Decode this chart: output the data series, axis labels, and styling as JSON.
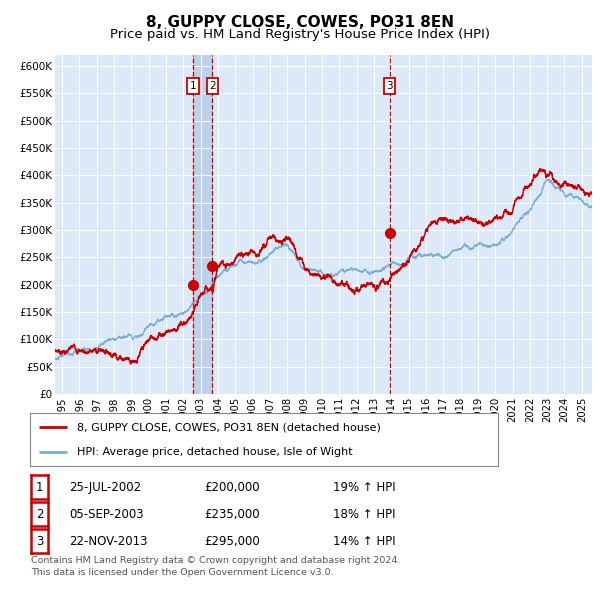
{
  "title": "8, GUPPY CLOSE, COWES, PO31 8EN",
  "subtitle": "Price paid vs. HM Land Registry's House Price Index (HPI)",
  "title_fontsize": 11,
  "subtitle_fontsize": 9.5,
  "ylim": [
    0,
    620000
  ],
  "yticks": [
    0,
    50000,
    100000,
    150000,
    200000,
    250000,
    300000,
    350000,
    400000,
    450000,
    500000,
    550000,
    600000
  ],
  "ytick_labels": [
    "£0",
    "£50K",
    "£100K",
    "£150K",
    "£200K",
    "£250K",
    "£300K",
    "£350K",
    "£400K",
    "£450K",
    "£500K",
    "£550K",
    "£600K"
  ],
  "xlim_start": 1994.6,
  "xlim_end": 2025.6,
  "xticks": [
    1995,
    1996,
    1997,
    1998,
    1999,
    2000,
    2001,
    2002,
    2003,
    2004,
    2005,
    2006,
    2007,
    2008,
    2009,
    2010,
    2011,
    2012,
    2013,
    2014,
    2015,
    2016,
    2017,
    2018,
    2019,
    2020,
    2021,
    2022,
    2023,
    2024,
    2025
  ],
  "background_color": "#ffffff",
  "plot_bg_color": "#dce9f8",
  "grid_color": "#ffffff",
  "red_line_color": "#cc0000",
  "blue_line_color": "#7aadd4",
  "sale_marker_color": "#cc0000",
  "dashed_line_color": "#cc0000",
  "shade_color": "#b8cfe8",
  "legend_label_red": "8, GUPPY CLOSE, COWES, PO31 8EN (detached house)",
  "legend_label_blue": "HPI: Average price, detached house, Isle of Wight",
  "footer_text": "Contains HM Land Registry data © Crown copyright and database right 2024.\nThis data is licensed under the Open Government Licence v3.0.",
  "sales": [
    {
      "num": 1,
      "date_str": "25-JUL-2002",
      "price": 200000,
      "date_x": 2002.56,
      "pct": "19%",
      "dir": "↑"
    },
    {
      "num": 2,
      "date_str": "05-SEP-2003",
      "price": 235000,
      "date_x": 2003.68,
      "pct": "18%",
      "dir": "↑"
    },
    {
      "num": 3,
      "date_str": "22-NOV-2013",
      "price": 295000,
      "date_x": 2013.9,
      "pct": "14%",
      "dir": "↑"
    }
  ]
}
